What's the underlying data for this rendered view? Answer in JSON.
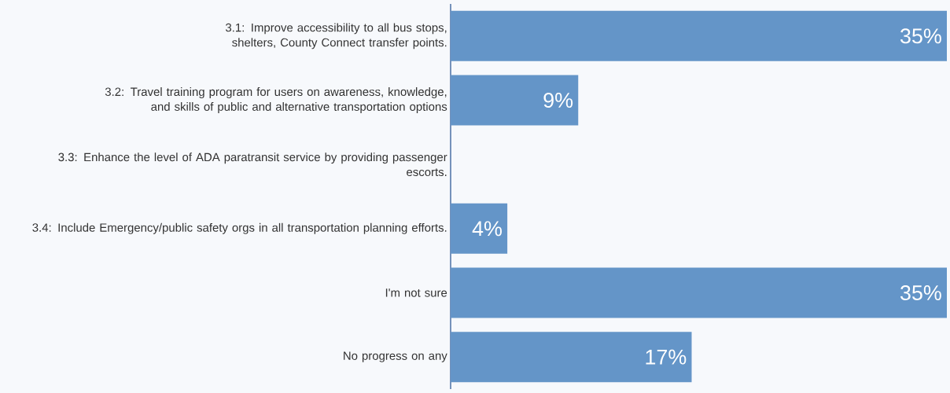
{
  "chart_data": {
    "type": "bar",
    "orientation": "horizontal",
    "categories": [
      "3.1: Improve accessibility to all bus stops, shelters, County Connect transfer points.",
      "3.2: Travel training program for users on awareness, knowledge, and skills of public and alternative transportation options",
      "3.3: Enhance the level of ADA paratransit service by providing passenger escorts.",
      "3.4: Include Emergency/public safety orgs in all transportation planning efforts.",
      "I'm not sure",
      "No progress on any"
    ],
    "values": [
      35,
      9,
      0,
      4,
      35,
      17
    ],
    "value_labels": [
      "35%",
      "9%",
      null,
      "4%",
      "35%",
      "17%"
    ],
    "color": "#6495c8"
  }
}
